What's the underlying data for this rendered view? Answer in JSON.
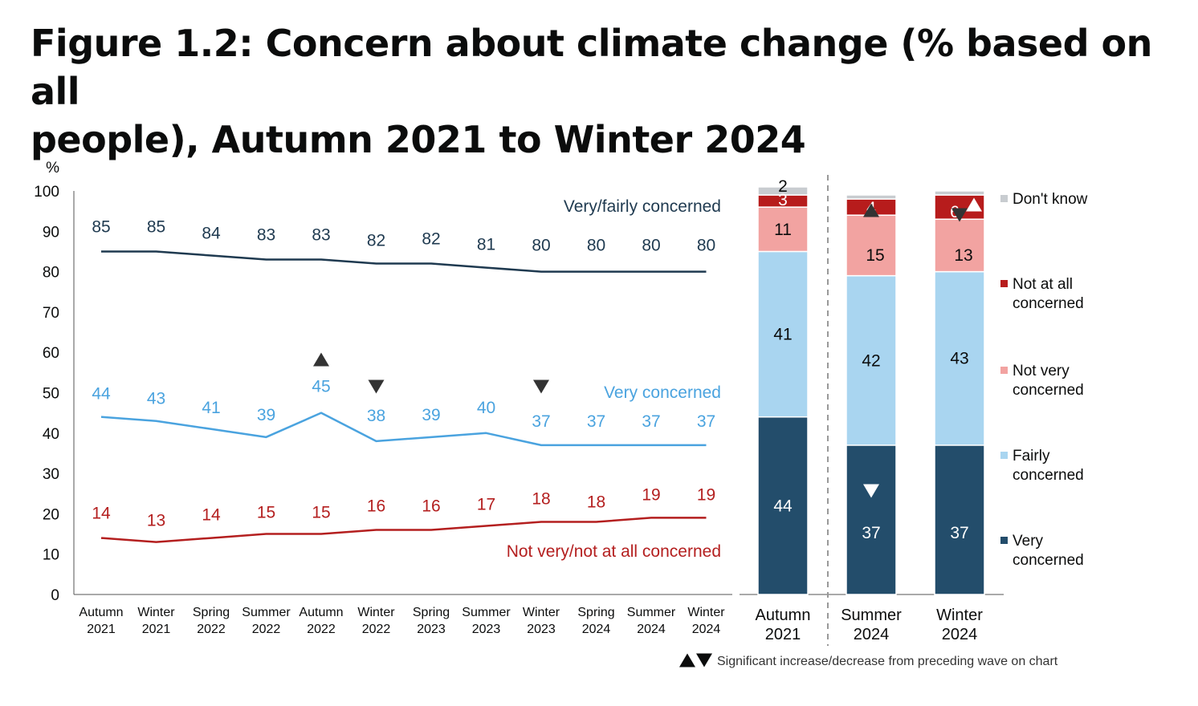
{
  "title_line1": "Figure 1.2: Concern about climate change (% based on all",
  "title_line2": "people), Autumn 2021 to Winter 2024",
  "footnote": "Significant increase/decrease from preceding wave on chart",
  "colors": {
    "dark_navy": "#1f3a50",
    "light_blue": "#4aa3df",
    "red": "#b41f1f",
    "very_concerned": "#234d6b",
    "fairly_concerned": "#a9d5f0",
    "not_very_concerned": "#f2a3a1",
    "not_at_all_concerned": "#b71c1c",
    "dont_know": "#c8ccd0"
  },
  "chart_data": [
    {
      "type": "line",
      "y_unit_label": "%",
      "ylim": [
        0,
        100
      ],
      "y_ticks": [
        0,
        10,
        20,
        30,
        40,
        50,
        60,
        70,
        80,
        90,
        100
      ],
      "categories": [
        [
          "Autumn",
          "2021"
        ],
        [
          "Winter",
          "2021"
        ],
        [
          "Spring",
          "2022"
        ],
        [
          "Summer",
          "2022"
        ],
        [
          "Autumn",
          "2022"
        ],
        [
          "Winter",
          "2022"
        ],
        [
          "Spring",
          "2023"
        ],
        [
          "Summer",
          "2023"
        ],
        [
          "Winter",
          "2023"
        ],
        [
          "Spring",
          "2024"
        ],
        [
          "Summer",
          "2024"
        ],
        [
          "Winter",
          "2024"
        ]
      ],
      "series": [
        {
          "name": "Very/fairly concerned",
          "color": "#1f3a50",
          "values": [
            85,
            85,
            84,
            83,
            83,
            82,
            82,
            81,
            80,
            80,
            80,
            80
          ],
          "labels": [
            "85",
            "85",
            "84",
            "83",
            "83",
            "82",
            "82",
            "81",
            "80",
            "80",
            "80",
            "80"
          ]
        },
        {
          "name": "Very concerned",
          "color": "#4aa3df",
          "values": [
            44,
            43,
            41,
            39,
            45,
            38,
            39,
            40,
            37,
            37,
            37,
            37
          ],
          "labels": [
            "44",
            "43",
            "41",
            "39",
            "45",
            "38",
            "39",
            "40",
            "37",
            "37",
            "37",
            "37"
          ],
          "significance": [
            {
              "index": 4,
              "direction": "increase"
            },
            {
              "index": 5,
              "direction": "decrease"
            },
            {
              "index": 8,
              "direction": "decrease"
            }
          ]
        },
        {
          "name": "Not very/not at all concerned",
          "color": "#b41f1f",
          "values": [
            14,
            13,
            14,
            15,
            15,
            16,
            16,
            17,
            18,
            18,
            19,
            19
          ],
          "labels": [
            "14",
            "13",
            "14",
            "15",
            "15",
            "16",
            "16",
            "17",
            "18",
            "18",
            "19",
            "19"
          ]
        }
      ],
      "grid": false
    },
    {
      "type": "bar",
      "stacked": true,
      "ylim": [
        0,
        100
      ],
      "categories": [
        [
          "Autumn",
          "2021"
        ],
        [
          "Summer",
          "2024"
        ],
        [
          "Winter",
          "2024"
        ]
      ],
      "series": [
        {
          "name": "Very concerned",
          "color": "#234d6b",
          "values": [
            44,
            37,
            37
          ],
          "labels": [
            "44",
            "37",
            "37"
          ],
          "label_color": "#ffffff"
        },
        {
          "name": "Fairly concerned",
          "color": "#a9d5f0",
          "values": [
            41,
            42,
            43
          ],
          "labels": [
            "41",
            "42",
            "43"
          ],
          "label_color": "#0b0c0c"
        },
        {
          "name": "Not very concerned",
          "color": "#f2a3a1",
          "values": [
            11,
            15,
            13
          ],
          "labels": [
            "11",
            "15",
            "13"
          ],
          "label_color": "#0b0c0c"
        },
        {
          "name": "Not at all concerned",
          "color": "#b71c1c",
          "values": [
            3,
            4,
            6
          ],
          "labels": [
            "3",
            "4",
            "6"
          ],
          "label_color": "#ffffff"
        },
        {
          "name": "Don't know",
          "color": "#c8ccd0",
          "values": [
            2,
            1,
            1
          ],
          "labels": [
            "2",
            "",
            ""
          ],
          "label_color": "#0b0c0c"
        }
      ],
      "legend": {
        "placement": "right",
        "entries": [
          {
            "series": "Don't know",
            "lines": [
              "Don't know"
            ]
          },
          {
            "series": "Not at all concerned",
            "lines": [
              "Not at all",
              "concerned"
            ]
          },
          {
            "series": "Not very concerned",
            "lines": [
              "Not very",
              "concerned"
            ]
          },
          {
            "series": "Fairly concerned",
            "lines": [
              "Fairly",
              "concerned"
            ]
          },
          {
            "series": "Very concerned",
            "lines": [
              "Very",
              "concerned"
            ]
          }
        ]
      },
      "significance": [
        {
          "bar": 1,
          "series": "Not at all concerned",
          "direction": "increase"
        },
        {
          "bar": 1,
          "series": "Not very concerned",
          "direction": "increase"
        },
        {
          "bar": 1,
          "series": "Very concerned",
          "direction": "decrease"
        },
        {
          "bar": 2,
          "series": "Not at all concerned",
          "direction": "increase"
        },
        {
          "bar": 2,
          "series": "Not very concerned",
          "direction": "decrease"
        }
      ]
    }
  ]
}
